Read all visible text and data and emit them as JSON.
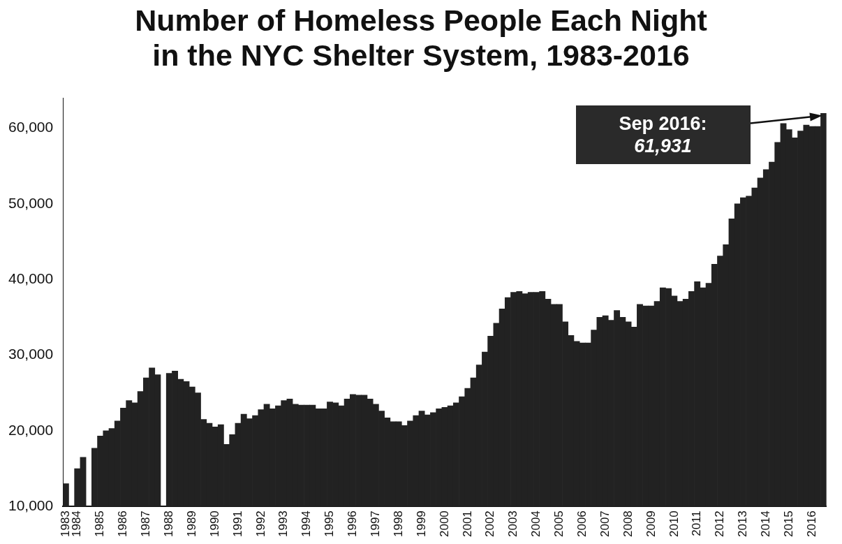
{
  "chart_data": {
    "type": "bar",
    "title": "Number of Homeless People Each Night in the NYC Shelter System, 1983-2016",
    "categories": [
      "1983",
      null,
      "1984",
      null,
      null,
      null,
      "1985",
      null,
      null,
      null,
      "1986",
      null,
      null,
      null,
      "1987",
      null,
      null,
      null,
      "1988",
      null,
      null,
      null,
      "1989",
      null,
      null,
      null,
      "1990",
      null,
      null,
      null,
      "1991",
      null,
      null,
      null,
      "1992",
      null,
      null,
      null,
      "1993",
      null,
      null,
      null,
      "1994",
      null,
      null,
      null,
      "1995",
      null,
      null,
      null,
      "1996",
      null,
      null,
      null,
      "1997",
      null,
      null,
      null,
      "1998",
      null,
      null,
      null,
      "1999",
      null,
      null,
      null,
      "2000",
      null,
      null,
      null,
      "2001",
      null,
      null,
      null,
      "2002",
      null,
      null,
      null,
      "2003",
      null,
      null,
      null,
      "2004",
      null,
      null,
      null,
      "2005",
      null,
      null,
      null,
      "2006",
      null,
      null,
      null,
      "2007",
      null,
      null,
      null,
      "2008",
      null,
      null,
      null,
      "2009",
      null,
      null,
      null,
      "2010",
      null,
      null,
      null,
      "2011",
      null,
      null,
      null,
      "2012",
      null,
      null,
      null,
      "2013",
      null,
      null,
      null,
      "2014",
      null,
      null,
      null,
      "2015",
      null,
      null,
      null,
      "2016",
      null,
      null
    ],
    "values": [
      13000,
      null,
      15000,
      16500,
      null,
      17700,
      19300,
      20000,
      20300,
      21300,
      23000,
      24000,
      23700,
      25200,
      27000,
      28300,
      27400,
      null,
      27600,
      27900,
      26800,
      26500,
      25800,
      25000,
      21500,
      21000,
      20500,
      20800,
      18200,
      19500,
      21000,
      22200,
      21600,
      22000,
      22800,
      23500,
      22900,
      23300,
      24000,
      24200,
      23500,
      23400,
      23400,
      23400,
      22900,
      22900,
      23800,
      23700,
      23300,
      24200,
      24800,
      24700,
      24700,
      24200,
      23500,
      22600,
      21700,
      21200,
      21200,
      20700,
      21300,
      22000,
      22600,
      22100,
      22400,
      22900,
      23100,
      23300,
      23700,
      24500,
      25600,
      27000,
      28700,
      30400,
      32500,
      34200,
      36100,
      37600,
      38300,
      38400,
      38100,
      38300,
      38300,
      38400,
      37400,
      36700,
      36700,
      34400,
      32600,
      31800,
      31600,
      31600,
      33300,
      35000,
      35200,
      34600,
      35900,
      35000,
      34400,
      33700,
      36700,
      36500,
      36500,
      37100,
      38900,
      38800,
      37800,
      37100,
      37400,
      38400,
      39700,
      38900,
      39500,
      42000,
      43100,
      44600,
      48000,
      50000,
      50800,
      51000,
      52100,
      53400,
      54500,
      55500,
      58100,
      60600,
      59800,
      58700,
      59600,
      60400,
      60200,
      60200,
      61931
    ],
    "color": "#222222",
    "ylim": [
      10000,
      64000
    ],
    "yticks": [
      {
        "value": 10000,
        "label": "10,000"
      },
      {
        "value": 20000,
        "label": "20,000"
      },
      {
        "value": 30000,
        "label": "30,000"
      },
      {
        "value": 40000,
        "label": "40,000"
      },
      {
        "value": 50000,
        "label": "50,000"
      },
      {
        "value": 60000,
        "label": "60,000"
      }
    ],
    "annotations": [
      "Sep 2016: 61,931"
    ],
    "grid": false,
    "legend": false
  }
}
